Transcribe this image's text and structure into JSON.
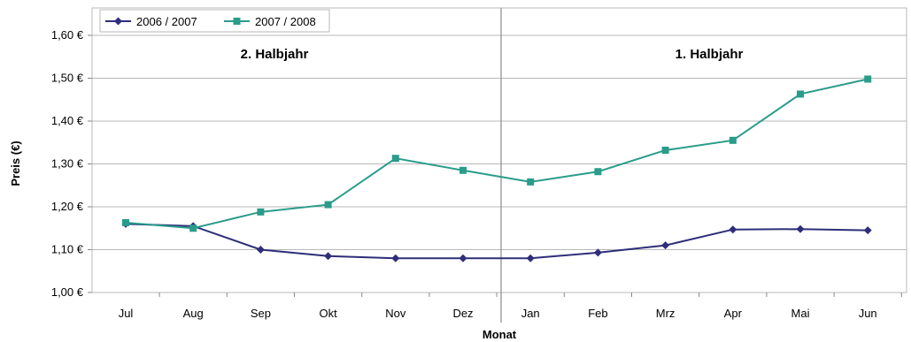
{
  "chart_data": {
    "type": "line",
    "categories": [
      "Jul",
      "Aug",
      "Sep",
      "Okt",
      "Nov",
      "Dez",
      "Jan",
      "Feb",
      "Mrz",
      "Apr",
      "Mai",
      "Jun"
    ],
    "series": [
      {
        "name": "2006 / 2007",
        "color": "#2e2e7a",
        "marker": "diamond",
        "values": [
          1.16,
          1.155,
          1.1,
          1.085,
          1.08,
          1.08,
          1.08,
          1.093,
          1.11,
          1.147,
          1.148,
          1.145
        ]
      },
      {
        "name": "2007 / 2008",
        "color": "#2a9c8a",
        "marker": "square",
        "values": [
          1.163,
          1.15,
          1.188,
          1.205,
          1.313,
          1.285,
          1.258,
          1.282,
          1.332,
          1.355,
          1.463,
          1.498
        ]
      }
    ],
    "ylim": [
      1.0,
      1.6
    ],
    "yticks": [
      "1,00 €",
      "1,10 €",
      "1,20 €",
      "1,30 €",
      "1,40 €",
      "1,50 €",
      "1,60 €"
    ],
    "xlabel": "Monat",
    "ylabel": "Preis (€)",
    "grid": true,
    "legend_position": "top-left",
    "annotations": [
      "2. Halbjahr",
      "1. Halbjahr"
    ]
  }
}
